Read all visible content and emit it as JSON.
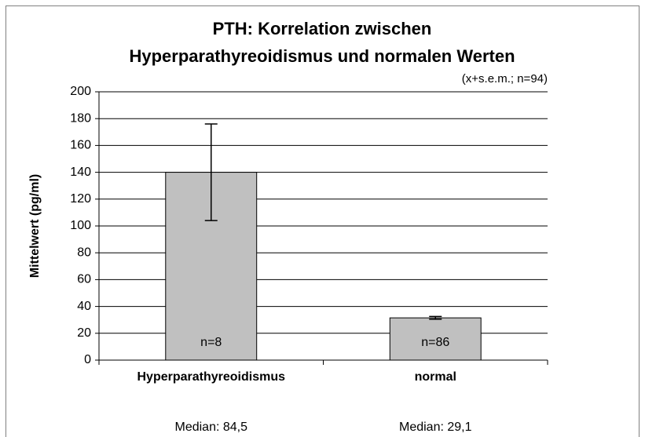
{
  "chart_data": {
    "type": "bar",
    "title": [
      "PTH: Korrelation zwischen",
      "Hyperparathyreoidismus und normalen Werten"
    ],
    "subtitle": "(x+s.e.m.; n=94)",
    "ylabel": "Mittelwert (pg/ml)",
    "categories": [
      "Hyperparathyreoidismus",
      "normal"
    ],
    "values": [
      140,
      31.5
    ],
    "errors": [
      36,
      1
    ],
    "bar_labels": [
      "n=8",
      "n=86"
    ],
    "medians": [
      "Median: 84,5",
      "Median: 29,1"
    ],
    "color": "#c0c0c0",
    "ylim": [
      0,
      200
    ],
    "yticks": [
      0,
      20,
      40,
      60,
      80,
      100,
      120,
      140,
      160,
      180,
      200
    ],
    "grid": true
  }
}
